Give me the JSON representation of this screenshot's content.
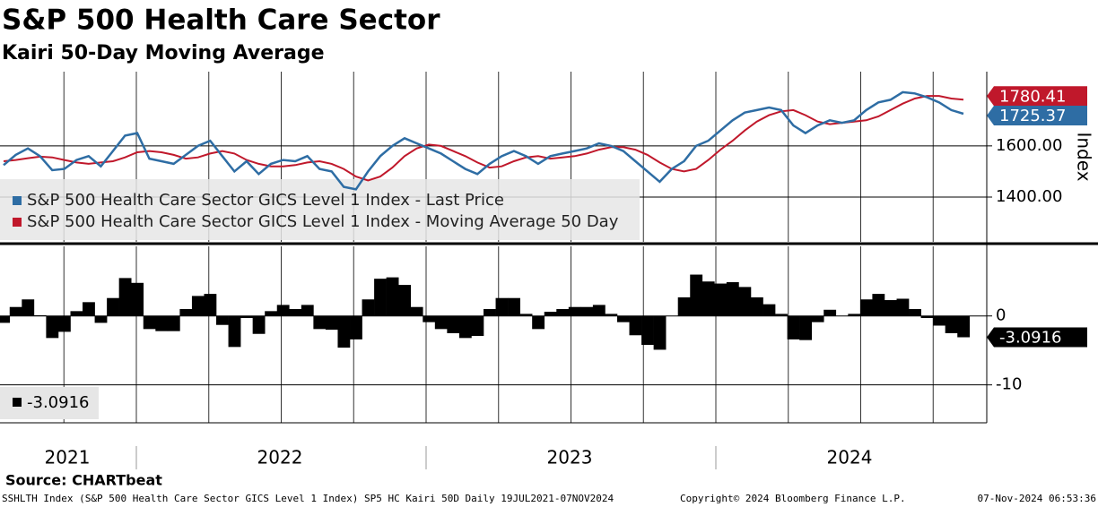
{
  "chart_data": [
    {
      "type": "line",
      "title": "S&P 500 Health Care Sector",
      "subtitle": "Kairi 50-Day Moving Average",
      "y_label": "Index",
      "series": [
        {
          "name": "S&P 500 Health Care Sector GICS Level 1 Index - Last Price",
          "color": "#2e6da4",
          "values": [
            1525,
            1565,
            1590,
            1560,
            1505,
            1510,
            1545,
            1560,
            1520,
            1580,
            1640,
            1650,
            1550,
            1540,
            1530,
            1565,
            1600,
            1620,
            1560,
            1500,
            1540,
            1490,
            1530,
            1545,
            1540,
            1560,
            1510,
            1500,
            1440,
            1430,
            1500,
            1560,
            1600,
            1630,
            1610,
            1590,
            1570,
            1540,
            1510,
            1490,
            1530,
            1560,
            1580,
            1560,
            1530,
            1560,
            1570,
            1580,
            1590,
            1610,
            1600,
            1580,
            1540,
            1500,
            1460,
            1510,
            1540,
            1600,
            1620,
            1660,
            1700,
            1730,
            1740,
            1750,
            1740,
            1680,
            1650,
            1680,
            1700,
            1690,
            1700,
            1740,
            1770,
            1780,
            1810,
            1805,
            1790,
            1770,
            1740,
            1725.37
          ]
        },
        {
          "name": "S&P 500 Health Care Sector GICS Level 1 Index - Moving Average 50 Day",
          "color": "#c0182b",
          "values": [
            1540,
            1545,
            1552,
            1558,
            1555,
            1545,
            1535,
            1530,
            1535,
            1540,
            1555,
            1575,
            1580,
            1575,
            1565,
            1550,
            1555,
            1570,
            1580,
            1570,
            1545,
            1530,
            1520,
            1520,
            1525,
            1535,
            1540,
            1530,
            1510,
            1480,
            1465,
            1480,
            1515,
            1560,
            1590,
            1605,
            1600,
            1580,
            1560,
            1535,
            1515,
            1520,
            1540,
            1555,
            1560,
            1550,
            1555,
            1560,
            1570,
            1585,
            1595,
            1595,
            1585,
            1565,
            1535,
            1510,
            1500,
            1510,
            1545,
            1585,
            1620,
            1660,
            1695,
            1720,
            1735,
            1740,
            1720,
            1695,
            1685,
            1690,
            1695,
            1700,
            1715,
            1740,
            1765,
            1785,
            1795,
            1795,
            1785,
            1780.41
          ]
        }
      ],
      "ylim": [
        1225,
        1890
      ],
      "yticks": [
        {
          "value": 1400,
          "label": "1400.00"
        },
        {
          "value": 1600,
          "label": "1600.00"
        }
      ],
      "grid": true,
      "legend": "lower-left"
    },
    {
      "type": "bar",
      "color": "#000000",
      "values": [
        -1.0,
        1.3,
        2.4,
        0.1,
        -3.2,
        -2.3,
        0.7,
        2.0,
        -1.0,
        2.6,
        5.5,
        4.8,
        -1.9,
        -2.2,
        -2.2,
        1.0,
        2.9,
        3.2,
        -1.3,
        -4.5,
        -0.3,
        -2.6,
        0.7,
        1.6,
        1.0,
        1.6,
        -1.9,
        -2.0,
        -4.6,
        -3.4,
        2.4,
        5.4,
        5.6,
        4.5,
        1.3,
        -0.9,
        -1.9,
        -2.5,
        -3.2,
        -2.9,
        1.0,
        2.6,
        2.6,
        0.3,
        -1.9,
        0.6,
        1.0,
        1.3,
        1.3,
        1.6,
        0.3,
        -0.9,
        -2.8,
        -4.2,
        -4.9,
        0.0,
        2.7,
        6.0,
        5.0,
        4.7,
        4.9,
        4.2,
        2.7,
        1.7,
        0.3,
        -3.4,
        -3.5,
        -0.9,
        0.9,
        0.0,
        0.3,
        2.4,
        3.2,
        2.3,
        2.5,
        1.0,
        -0.3,
        -1.4,
        -2.5,
        -3.0916
      ],
      "ylim": [
        -15.5,
        10.1
      ],
      "yticks": [
        0,
        -10
      ],
      "grid": true,
      "legend": "lower-left",
      "x_labels": [
        "2021",
        "2022",
        "2023",
        "2024"
      ]
    }
  ],
  "source": "Source: CHARTbeat",
  "footer": {
    "left": "SSHLTH Index (S&P 500 Health Care Sector GICS Level 1 Index) SP5 HC Kairi 50D  Daily 19JUL2021-07NOV2024",
    "center": "Copyright© 2024 Bloomberg Finance L.P.",
    "right": "07-Nov-2024 06:53:36"
  }
}
